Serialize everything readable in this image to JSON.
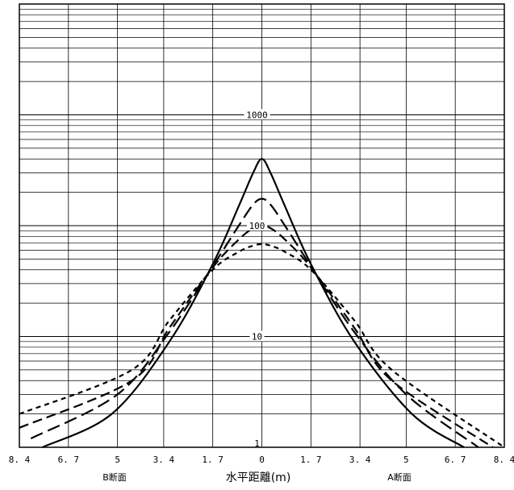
{
  "chart_data": {
    "type": "line",
    "xlabel": "水平距離(m)",
    "x_tick_labels": [
      "8.4",
      "6.7",
      "5",
      "3.4",
      "1.7",
      "0",
      "1.7",
      "3.4",
      "5",
      "6.7",
      "8.4"
    ],
    "y_tick_labels": [
      "1",
      "10",
      "100",
      "1000"
    ],
    "section_labels": {
      "left": "B断面",
      "right": "A断面"
    },
    "x_range": [
      -8.4,
      8.4
    ],
    "y_range": [
      1,
      10000
    ],
    "y_scale": "log",
    "grid": true,
    "series": [
      {
        "style": "solid",
        "x": [
          -7.6,
          -5.2,
          -3.2,
          -1.7,
          -0.8,
          -0.3,
          0,
          0.3,
          0.8,
          1.7,
          3.2,
          5.2,
          7.0
        ],
        "y": [
          1.0,
          2.0,
          9.0,
          45,
          150,
          300,
          400,
          300,
          150,
          45,
          9.0,
          2.0,
          1.0
        ]
      },
      {
        "style": "long-dash",
        "x": [
          -8.0,
          -5.0,
          -3.2,
          -1.7,
          -0.8,
          -0.3,
          0,
          0.3,
          0.8,
          1.7,
          3.2,
          5.0,
          7.5
        ],
        "y": [
          1.2,
          3.0,
          11,
          43,
          100,
          155,
          175,
          155,
          100,
          43,
          11,
          3.0,
          1.0
        ]
      },
      {
        "style": "dash",
        "x": [
          -8.4,
          -4.5,
          -3.2,
          -1.7,
          -0.8,
          -0.3,
          0,
          0.3,
          0.8,
          1.7,
          3.2,
          4.5,
          8.0
        ],
        "y": [
          1.5,
          4.0,
          12,
          42,
          75,
          95,
          100,
          95,
          75,
          42,
          12,
          4.0,
          1.0
        ]
      },
      {
        "style": "short-dash",
        "x": [
          -8.4,
          -4.5,
          -3.2,
          -1.7,
          -0.8,
          -0.3,
          0,
          0.3,
          0.8,
          1.7,
          3.2,
          4.5,
          8.4
        ],
        "y": [
          2.0,
          5.0,
          14,
          40,
          58,
          66,
          68,
          66,
          58,
          40,
          14,
          5.0,
          1.0
        ]
      }
    ]
  }
}
